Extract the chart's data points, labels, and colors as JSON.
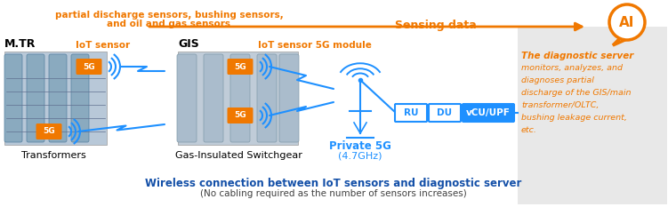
{
  "bg_color": "#ffffff",
  "panel_bg": "#e8e8e8",
  "orange": "#F07800",
  "blue": "#1E90FF",
  "dark_blue": "#1450A8",
  "title": "Wireless connection between IoT sensors and diagnostic server",
  "subtitle": "(No cabling required as the number of sensors increases)",
  "sensing_data": "Sensing data",
  "top_line1": "partial discharge sensors, bushing sensors,",
  "top_line2": "and oil and gas sensors",
  "mtr": "M.TR",
  "gis": "GIS",
  "iot1": "IoT sensor",
  "iot2": "IoT sensor 5G module",
  "transformers": "Transformers",
  "gas_insulated": "Gas-Insulated Switchgear",
  "private5g": "Private 5G",
  "freq": "(4.7GHz)",
  "ru": "RU",
  "du": "DU",
  "vcu": "vCU/UPF",
  "5g": "5G",
  "ai": "AI",
  "diag_title": "The diagnostic server",
  "diag_body": "monitors, analyzes, and\ndiagnoses partial\ndischarge of the GIS/main\ntransformer/OLTC,\nbushing leakage current,\netc."
}
